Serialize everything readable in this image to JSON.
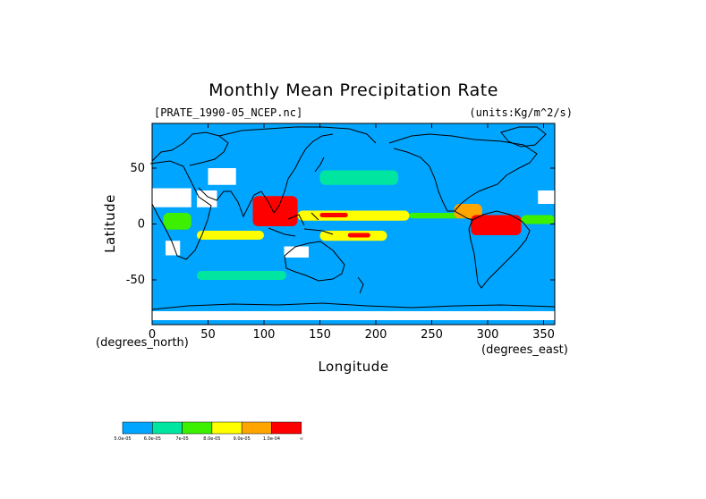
{
  "chart_data": {
    "type": "heatmap",
    "title": "Monthly Mean Precipitation Rate",
    "file_label": "[PRATE_1990-05_NCEP.nc]",
    "units_label": "(units:Kg/m^2/s)",
    "xlabel": "Longitude",
    "ylabel": "Latitude",
    "x_unit_note": "(degrees_east)",
    "y_unit_note": "(degrees_north)",
    "xlim": [
      0,
      360
    ],
    "ylim": [
      -90,
      90
    ],
    "x_ticks": [
      0,
      50,
      100,
      150,
      200,
      250,
      300,
      350
    ],
    "y_ticks": [
      50,
      0,
      -50
    ],
    "x_tick_labels": [
      "0",
      "50",
      "100",
      "150",
      "200",
      "250",
      "300",
      "350"
    ],
    "y_tick_labels": [
      "50",
      "0",
      "-50"
    ],
    "ocean_color": "#00a5ff",
    "land_gap_color": "#ffffff",
    "coastline_color": "#000000",
    "color_levels": [
      {
        "label": "5.0e-05",
        "color": "#00a5ff"
      },
      {
        "label": "6.0e-05",
        "color": "#00e6a0"
      },
      {
        "label": "7e-05",
        "color": "#3cf000"
      },
      {
        "label": "8.0e-05",
        "color": "#ffff00"
      },
      {
        "label": "9.0e-05",
        "color": "#ffa500"
      },
      {
        "label": "1.0e-04",
        "color": "#ff0000"
      }
    ],
    "colorbar_end_label": "∞",
    "precip_regions": [
      {
        "name": "indian-ocean-band",
        "lon": [
          40,
          100
        ],
        "lat": [
          -14,
          -6
        ],
        "level": 3
      },
      {
        "name": "maritime-continent",
        "lon": [
          90,
          130
        ],
        "lat": [
          -2,
          25
        ],
        "level": 5
      },
      {
        "name": "west-pacific-itcz",
        "lon": [
          130,
          230
        ],
        "lat": [
          3,
          12
        ],
        "level": 3
      },
      {
        "name": "west-pacific-core",
        "lon": [
          150,
          175
        ],
        "lat": [
          6,
          10
        ],
        "level": 5
      },
      {
        "name": "south-pacific-convergence",
        "lon": [
          150,
          210
        ],
        "lat": [
          -15,
          -6
        ],
        "level": 3
      },
      {
        "name": "south-pacific-core",
        "lon": [
          175,
          195
        ],
        "lat": [
          -12,
          -8
        ],
        "level": 5
      },
      {
        "name": "east-pacific-itcz",
        "lon": [
          230,
          280
        ],
        "lat": [
          5,
          10
        ],
        "level": 2
      },
      {
        "name": "central-america",
        "lon": [
          270,
          295
        ],
        "lat": [
          5,
          18
        ],
        "level": 4
      },
      {
        "name": "amazon",
        "lon": [
          285,
          330
        ],
        "lat": [
          -10,
          8
        ],
        "level": 5
      },
      {
        "name": "equatorial-atlantic",
        "lon": [
          330,
          360
        ],
        "lat": [
          0,
          8
        ],
        "level": 2
      },
      {
        "name": "equatorial-africa",
        "lon": [
          10,
          35
        ],
        "lat": [
          -5,
          10
        ],
        "level": 2
      },
      {
        "name": "north-pacific-storm-track",
        "lon": [
          150,
          220
        ],
        "lat": [
          35,
          48
        ],
        "level": 1
      },
      {
        "name": "southern-ocean-track",
        "lon": [
          40,
          120
        ],
        "lat": [
          -50,
          -42
        ],
        "level": 1
      }
    ],
    "no_data_regions": [
      {
        "name": "sahara",
        "lon": [
          0,
          35
        ],
        "lat": [
          15,
          32
        ]
      },
      {
        "name": "arabia",
        "lon": [
          40,
          58
        ],
        "lat": [
          15,
          30
        ]
      },
      {
        "name": "western-sahara",
        "lon": [
          345,
          360
        ],
        "lat": [
          18,
          30
        ]
      },
      {
        "name": "southwest-africa",
        "lon": [
          12,
          25
        ],
        "lat": [
          -28,
          -15
        ]
      },
      {
        "name": "australia-interior",
        "lon": [
          118,
          140
        ],
        "lat": [
          -30,
          -20
        ]
      },
      {
        "name": "central-asia",
        "lon": [
          50,
          75
        ],
        "lat": [
          35,
          50
        ]
      },
      {
        "name": "antarctica-coast",
        "lon": [
          0,
          360
        ],
        "lat": [
          -86,
          -78
        ]
      }
    ]
  }
}
